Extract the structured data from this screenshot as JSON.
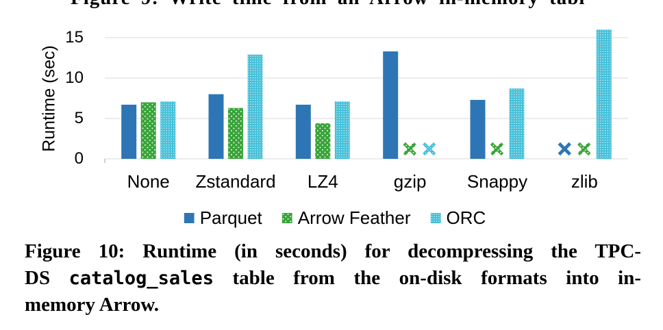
{
  "page": {
    "top_partial_caption": "Figure 9: Write time from an Arrow in-memory tabl"
  },
  "chart_data": {
    "type": "bar",
    "title": "",
    "xlabel": "",
    "ylabel": "Runtime (sec)",
    "ylim": [
      0,
      15
    ],
    "yticks": [
      0,
      5,
      10,
      15
    ],
    "grid": true,
    "legend_position": "bottom",
    "categories": [
      "None",
      "Zstandard",
      "LZ4",
      "gzip",
      "Snappy",
      "zlib"
    ],
    "series": [
      {
        "name": "Parquet",
        "color": "#2E75B5",
        "pattern": "solid",
        "values": [
          6.7,
          8.0,
          6.7,
          13.3,
          7.3,
          null
        ]
      },
      {
        "name": "Arrow Feather",
        "color": "#38A438",
        "pattern": "dots",
        "values": [
          7.0,
          6.3,
          4.4,
          null,
          null,
          null
        ]
      },
      {
        "name": "ORC",
        "color": "#45C0D9",
        "pattern": "grid",
        "values": [
          7.1,
          12.9,
          7.1,
          null,
          8.7,
          16.0
        ]
      }
    ],
    "missing_value_marker": "x",
    "missing_marker_meaning": "format/codec combination not supported",
    "gridline_color": "#D9D9D9"
  },
  "caption": {
    "line1": "Figure 10: Runtime (in seconds) for decompressing the TPC-",
    "line2_prefix": "DS ",
    "line2_code": "catalog_sales",
    "line2_suffix": " table from the on-disk formats into in-",
    "line3": "memory Arrow."
  }
}
